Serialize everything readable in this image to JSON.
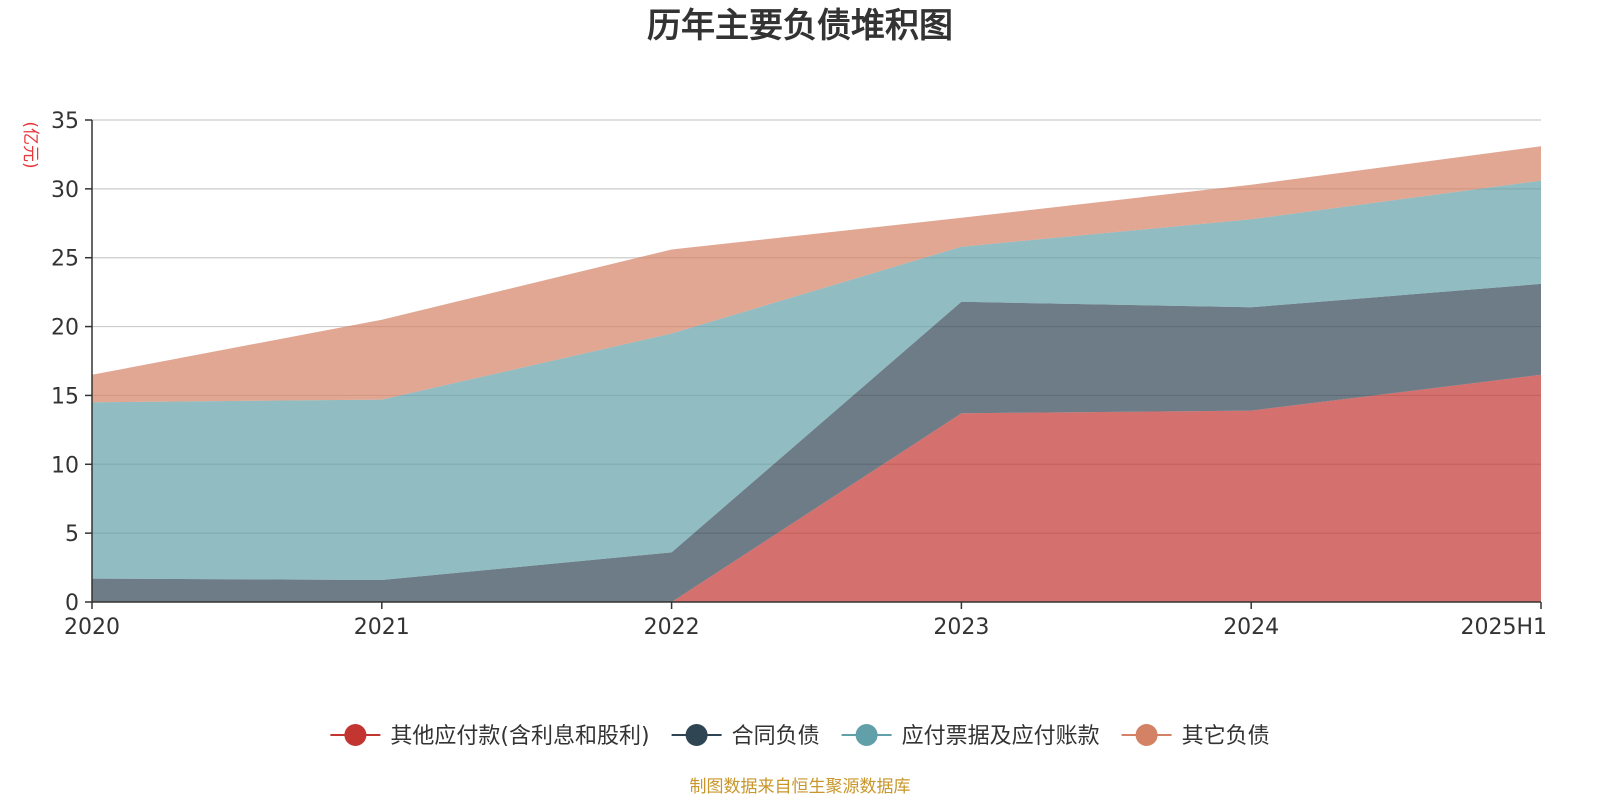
{
  "chart_data": {
    "type": "area",
    "stacked": true,
    "title": "历年主要负债堆积图",
    "unit_label": "(亿元)",
    "x": [
      "2020",
      "2021",
      "2022",
      "2023",
      "2024",
      "2025H1"
    ],
    "ylim": [
      0,
      35
    ],
    "yticks": [
      0,
      5,
      10,
      15,
      20,
      25,
      30,
      35
    ],
    "grid": true,
    "legend_position": "bottom",
    "series": [
      {
        "name": "其他应付款(含利息和股利)",
        "color": "#c23531",
        "values": [
          0,
          0,
          0,
          13.7,
          13.9,
          16.5
        ]
      },
      {
        "name": "合同负债",
        "color": "#2f4554",
        "values": [
          1.7,
          1.6,
          3.6,
          8.1,
          7.5,
          6.6
        ]
      },
      {
        "name": "应付票据及应付账款",
        "color": "#61a0a8",
        "values": [
          12.8,
          13.1,
          15.9,
          4.0,
          6.4,
          7.5
        ]
      },
      {
        "name": "其它负债",
        "color": "#d48265",
        "values": [
          2.0,
          5.8,
          6.1,
          2.1,
          2.5,
          2.5
        ]
      }
    ]
  },
  "footer": {
    "source": "制图数据来自恒生聚源数据库"
  }
}
